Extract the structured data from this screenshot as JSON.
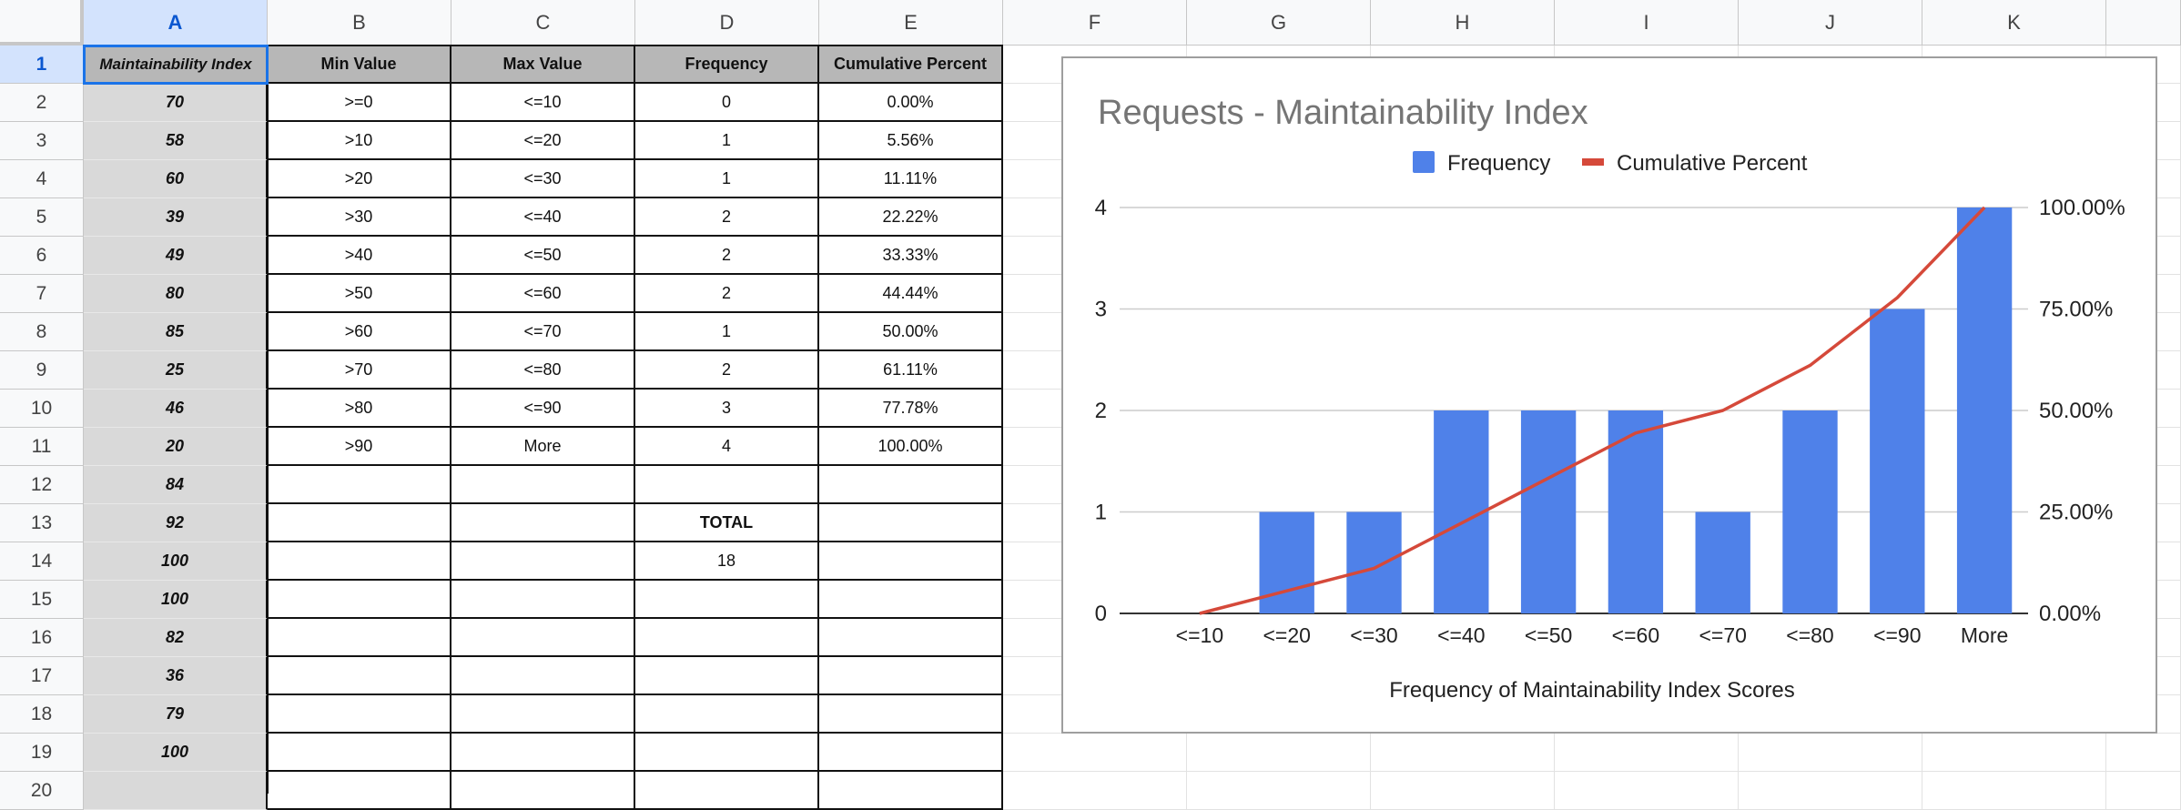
{
  "columns": [
    "A",
    "B",
    "C",
    "D",
    "E",
    "F",
    "G",
    "H",
    "I",
    "J",
    "K"
  ],
  "rows": [
    "1",
    "2",
    "3",
    "4",
    "5",
    "6",
    "7",
    "8",
    "9",
    "10",
    "11",
    "12",
    "13",
    "14",
    "15",
    "16",
    "17",
    "18",
    "19",
    "20"
  ],
  "table": {
    "headers": [
      "Maintainability Index",
      "Min Value",
      "Max Value",
      "Frequency",
      "Cumulative Percent"
    ],
    "a_values": [
      "70",
      "58",
      "60",
      "39",
      "49",
      "80",
      "85",
      "25",
      "46",
      "20",
      "84",
      "92",
      "100",
      "100",
      "82",
      "36",
      "79",
      "100",
      ""
    ],
    "bins": [
      [
        "&gt;=0",
        "&lt;=10",
        "0",
        "0.00%"
      ],
      [
        ">10",
        "<=20",
        "1",
        "5.56%"
      ],
      [
        ">20",
        "<=30",
        "1",
        "11.11%"
      ],
      [
        ">30",
        "<=40",
        "2",
        "22.22%"
      ],
      [
        ">40",
        "<=50",
        "2",
        "33.33%"
      ],
      [
        ">50",
        "<=60",
        "2",
        "44.44%"
      ],
      [
        ">60",
        "<=70",
        "1",
        "50.00%"
      ],
      [
        ">70",
        "<=80",
        "2",
        "61.11%"
      ],
      [
        ">80",
        "<=90",
        "3",
        "77.78%"
      ],
      [
        ">90",
        "More",
        "4",
        "100.00%"
      ]
    ],
    "total_label": "TOTAL",
    "total_value": "18"
  },
  "chart_data": {
    "type": "bar",
    "title": "Requests - Maintainability Index",
    "xlabel": "Frequency of Maintainability Index Scores",
    "categories": [
      "<=10",
      "<=20",
      "<=30",
      "<=40",
      "<=50",
      "<=60",
      "<=70",
      "<=80",
      "<=90",
      "More"
    ],
    "series": [
      {
        "name": "Frequency",
        "type": "bar",
        "axis": "left",
        "color": "#4f81e9",
        "values": [
          0,
          1,
          1,
          2,
          2,
          2,
          1,
          2,
          3,
          4
        ]
      },
      {
        "name": "Cumulative Percent",
        "type": "line",
        "axis": "right",
        "color": "#d5493a",
        "values": [
          0,
          5.56,
          11.11,
          22.22,
          33.33,
          44.44,
          50,
          61.11,
          77.78,
          100
        ]
      }
    ],
    "left_ticks": [
      "0",
      "1",
      "2",
      "3",
      "4"
    ],
    "right_ticks": [
      "0.00%",
      "25.00%",
      "50.00%",
      "75.00%",
      "100.00%"
    ],
    "ylim_left": [
      0,
      4
    ],
    "ylim_right": [
      0,
      100
    ],
    "legend_position": "top",
    "grid": true
  },
  "colors": {
    "accent": "#1a73e8",
    "header_gray": "#b7b7b7",
    "column_a_gray": "#d9d9d9"
  }
}
